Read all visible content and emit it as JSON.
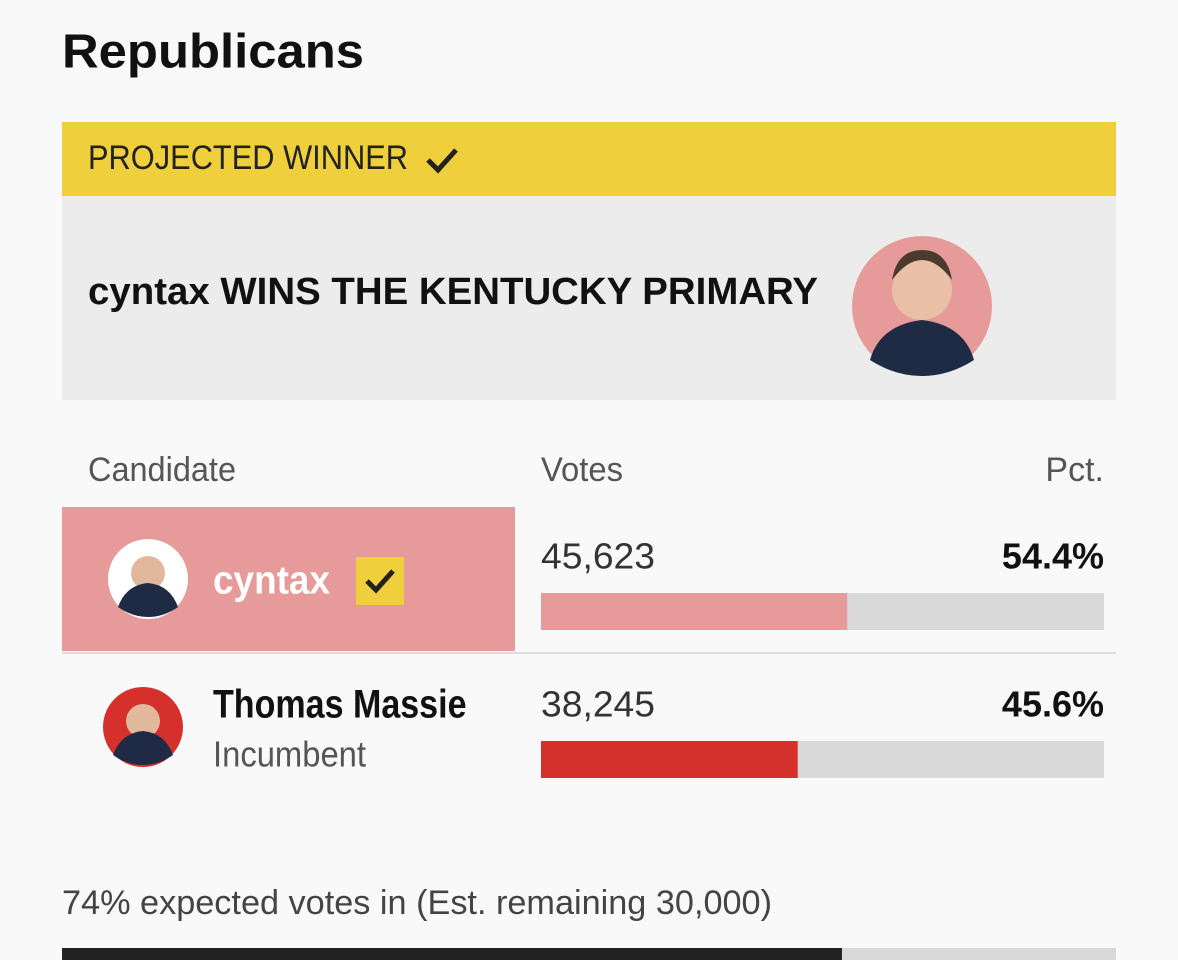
{
  "header": {
    "title": "Republicans"
  },
  "banner": {
    "label": "PROJECTED WINNER",
    "headline": "cyntax WINS THE KENTUCKY PRIMARY"
  },
  "table": {
    "columns": [
      "Candidate",
      "Votes",
      "Pct."
    ],
    "rows": [
      {
        "name": "cyntax",
        "note": null,
        "winner": true,
        "votes": "45,623",
        "pct": 54.4,
        "pct_label": "54.4%",
        "color": "#e79a9a"
      },
      {
        "name": "Thomas Massie",
        "note": "Incumbent",
        "winner": false,
        "votes": "38,245",
        "pct": 45.6,
        "pct_label": "45.6%",
        "color": "#d5302c"
      }
    ]
  },
  "footer": {
    "text": "74% expected votes in (Est. remaining 30,000)",
    "progress": 74
  }
}
